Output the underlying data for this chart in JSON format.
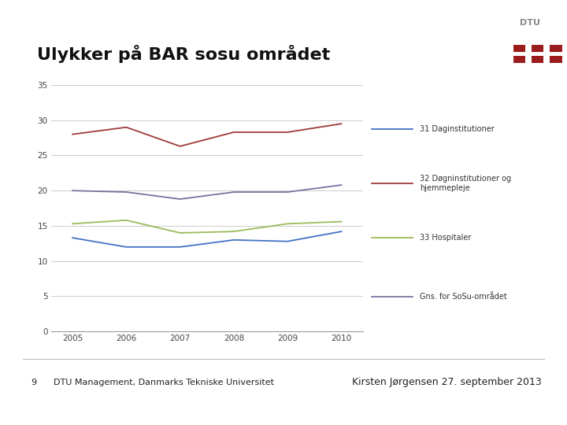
{
  "title": "Ulykker på BAR sosu området",
  "years": [
    2005,
    2006,
    2007,
    2008,
    2009,
    2010
  ],
  "series": [
    {
      "label": "31 Daginstitutioner",
      "color": "#4472c4",
      "values": [
        13.3,
        12.0,
        12.0,
        13.0,
        12.8,
        14.2
      ]
    },
    {
      "label": "32 Døgninstitutioner og\nhjemmepleje",
      "color": "#9e3a3a",
      "values": [
        28.0,
        29.0,
        26.3,
        28.3,
        28.3,
        29.5
      ]
    },
    {
      "label": "33 Hospitaler",
      "color": "#9bbb59",
      "values": [
        15.3,
        15.8,
        14.0,
        14.2,
        15.3,
        15.6
      ]
    },
    {
      "label": "Gns. for SoSu-området",
      "color": "#7f6fa0",
      "values": [
        20.0,
        19.8,
        18.8,
        19.8,
        19.8,
        20.8
      ]
    }
  ],
  "ylim": [
    0,
    35
  ],
  "yticks": [
    0,
    5,
    10,
    15,
    20,
    25,
    30,
    35
  ],
  "footer_left_num": "9",
  "footer_left_text": "DTU Management, Danmarks Tekniske Universitet",
  "footer_right_text": "Kirsten Jørgensen 27. september 2013",
  "bg_color": "#ffffff",
  "plot_bg_color": "#ffffff",
  "grid_color": "#cccccc",
  "dtu_red": "#9b1c1c",
  "dtu_grey": "#888888"
}
